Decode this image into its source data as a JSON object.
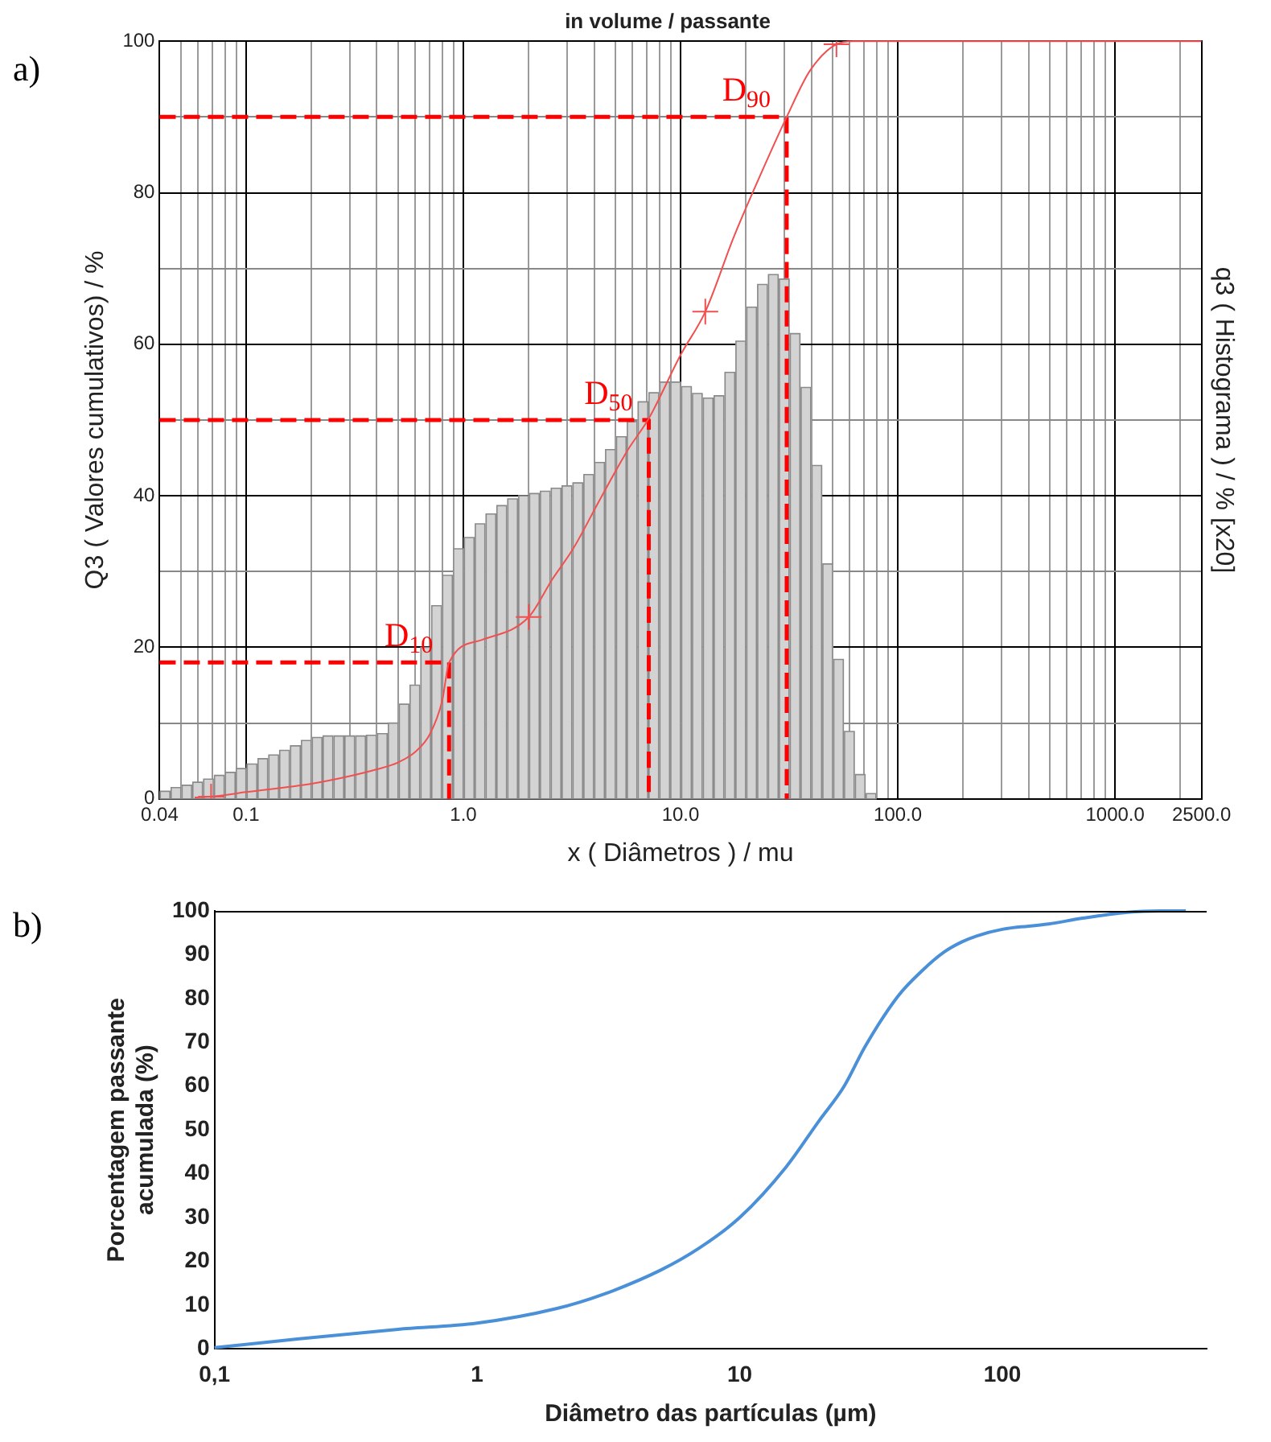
{
  "chart_data": [
    {
      "type": "line",
      "title": "in volume / passante",
      "xlabel": "x ( Diâmetros ) / mu",
      "ylabel": "Q3 ( Valores cumulativos) / %",
      "y2label": "q3 ( Histograma ) / % [x20]",
      "annotations": [
        "a)"
      ],
      "log": "x",
      "grid": true,
      "legend": false,
      "xlim": [
        0.04,
        2500
      ],
      "ylim": [
        0,
        100
      ],
      "xticks": [
        {
          "value": 0.04,
          "label": "0.04"
        },
        {
          "value": 0.05,
          "label": null
        },
        {
          "value": 0.06,
          "label": null
        },
        {
          "value": 0.07,
          "label": null
        },
        {
          "value": 0.08,
          "label": null
        },
        {
          "value": 0.09,
          "label": null
        },
        {
          "value": 0.1,
          "label": "0.1"
        },
        {
          "value": 0.2,
          "label": null
        },
        {
          "value": 0.3,
          "label": null
        },
        {
          "value": 0.4,
          "label": null
        },
        {
          "value": 0.5,
          "label": null
        },
        {
          "value": 0.6,
          "label": null
        },
        {
          "value": 0.7,
          "label": null
        },
        {
          "value": 0.8,
          "label": null
        },
        {
          "value": 0.9,
          "label": null
        },
        {
          "value": 1,
          "label": "1.0"
        },
        {
          "value": 2,
          "label": null
        },
        {
          "value": 3,
          "label": null
        },
        {
          "value": 4,
          "label": null
        },
        {
          "value": 5,
          "label": null
        },
        {
          "value": 6,
          "label": null
        },
        {
          "value": 7,
          "label": null
        },
        {
          "value": 8,
          "label": null
        },
        {
          "value": 9,
          "label": null
        },
        {
          "value": 10,
          "label": "10.0"
        },
        {
          "value": 20,
          "label": null
        },
        {
          "value": 30,
          "label": null
        },
        {
          "value": 40,
          "label": null
        },
        {
          "value": 50,
          "label": null
        },
        {
          "value": 60,
          "label": null
        },
        {
          "value": 70,
          "label": null
        },
        {
          "value": 80,
          "label": null
        },
        {
          "value": 90,
          "label": null
        },
        {
          "value": 100,
          "label": "100.0"
        },
        {
          "value": 200,
          "label": null
        },
        {
          "value": 300,
          "label": null
        },
        {
          "value": 400,
          "label": null
        },
        {
          "value": 500,
          "label": null
        },
        {
          "value": 600,
          "label": null
        },
        {
          "value": 700,
          "label": null
        },
        {
          "value": 800,
          "label": null
        },
        {
          "value": 900,
          "label": null
        },
        {
          "value": 1000,
          "label": "1000.0"
        },
        {
          "value": 2000,
          "label": null
        },
        {
          "value": 2500,
          "label": "2500.0"
        }
      ],
      "yticks": [
        0,
        {
          "value": 10,
          "label": null
        },
        20,
        {
          "value": 30,
          "label": null
        },
        40,
        {
          "value": 50,
          "label": null
        },
        60,
        {
          "value": 70,
          "label": null
        },
        80,
        {
          "value": 90,
          "label": null
        },
        100
      ],
      "series": [
        {
          "type": "histogram",
          "color": "#d3d3d3",
          "bins": [
            0.04,
            0.0449,
            0.0504,
            0.0565,
            0.0634,
            0.0711,
            0.0798,
            0.0896,
            0.1005,
            0.1128,
            0.1265,
            0.1419,
            0.1592,
            0.1787,
            0.2005,
            0.225,
            0.2524,
            0.2832,
            0.3178,
            0.3566,
            0.4,
            0.449,
            0.504,
            0.565,
            0.634,
            0.711,
            0.798,
            0.896,
            1.005,
            1.128,
            1.265,
            1.419,
            1.592,
            1.787,
            2.005,
            2.25,
            2.524,
            2.832,
            3.178,
            3.566,
            4.0,
            4.49,
            5.04,
            5.65,
            6.34,
            7.11,
            7.98,
            8.96,
            10.05,
            11.28,
            12.65,
            14.19,
            15.92,
            17.87,
            20.05,
            22.5,
            25.24,
            28.32,
            31.78,
            35.66,
            40,
            44.9,
            50.4,
            56.5,
            63.4,
            71.1,
            79.8
          ],
          "values": [
            1.0,
            1.5,
            1.8,
            2.2,
            2.6,
            3.1,
            3.5,
            4.0,
            4.6,
            5.3,
            5.8,
            6.4,
            7.0,
            7.7,
            8.1,
            8.3,
            8.3,
            8.3,
            8.3,
            8.4,
            8.6,
            10.0,
            12.5,
            15,
            20,
            25.5,
            29.5,
            33,
            34.5,
            36.3,
            37.6,
            38.7,
            39.6,
            40,
            40.3,
            40.6,
            41,
            41.3,
            41.7,
            42.8,
            44.4,
            46.1,
            47.8,
            49.8,
            52.4,
            53.6,
            55,
            55,
            54.4,
            53.5,
            52.9,
            53.2,
            56.3,
            60.4,
            64.9,
            67.9,
            69.2,
            68.6,
            61.4,
            54.3,
            44,
            31,
            18.4,
            8.9,
            3.2,
            0.7
          ]
        },
        {
          "type": "line",
          "color": "#f05050",
          "x": [
            0.058,
            0.069,
            0.1,
            0.2,
            0.3,
            0.4,
            0.5,
            0.6,
            0.7,
            0.8,
            0.86,
            1.22,
            2.0,
            2.57,
            3.2,
            4.27,
            5.7,
            7.14,
            10.05,
            13.0,
            17.6,
            23.6,
            30.8,
            39.4,
            52.2,
            62.4,
            2500
          ],
          "values": [
            0.2,
            0.3,
            0.9,
            2.0,
            3.0,
            3.9,
            4.8,
            6.2,
            8.5,
            13,
            18,
            21,
            24,
            29,
            33,
            39.6,
            46,
            50.2,
            58.7,
            64.3,
            74.2,
            82.7,
            90,
            96.1,
            99.6,
            100,
            100
          ]
        },
        {
          "type": "scatter",
          "marker": "cross",
          "color": "#f05050",
          "x": [
            0.069,
            2.0,
            13.0,
            52.2
          ],
          "values": [
            0.3,
            24,
            64.3,
            99.6
          ]
        },
        {
          "type": "line",
          "name": "D$_{10}$",
          "line_style": "dashed",
          "color": "#ff0000",
          "x": [
            0.04,
            0.86,
            0.86
          ],
          "values": [
            18,
            18,
            0
          ]
        },
        {
          "type": "line",
          "name": "D$_{50}$",
          "line_style": "dashed",
          "color": "#ff0000",
          "x": [
            0.04,
            7.14,
            7.14
          ],
          "values": [
            50,
            50,
            0
          ]
        },
        {
          "type": "line",
          "name": "D$_{90}$",
          "line_style": "dashed",
          "color": "#ff0000",
          "x": [
            0.04,
            30.8,
            30.8
          ],
          "values": [
            90,
            90,
            0
          ]
        }
      ]
    },
    {
      "type": "line",
      "xlabel": "Diâmetro das partículas (µm)",
      "ylabel": "Porcentagem passante acumulada (%)",
      "annotations": [
        "b)"
      ],
      "log": "x",
      "legend": false,
      "xlim": [
        0.1,
        600
      ],
      "ylim": [
        0,
        100
      ],
      "xticks": [
        {
          "value": 0.1,
          "label": "0,1"
        },
        1,
        10,
        100
      ],
      "yticks": [
        0,
        10,
        20,
        30,
        40,
        50,
        60,
        70,
        80,
        90,
        100
      ],
      "series": [
        {
          "color": "#4a90d9",
          "x": [
            0.1,
            0.2,
            0.5,
            1,
            2,
            3,
            5,
            7,
            10,
            15,
            20,
            25,
            30,
            40,
            50,
            60,
            70,
            80,
            100,
            150,
            200,
            300,
            400,
            500
          ],
          "values": [
            0.3,
            2.2,
            4.5,
            5.9,
            9.2,
            12.4,
            18,
            23,
            30,
            41.5,
            52,
            60,
            69,
            80.5,
            86.6,
            90.6,
            92.9,
            94.3,
            95.8,
            97,
            98.3,
            99.7,
            100,
            100
          ]
        }
      ]
    }
  ]
}
